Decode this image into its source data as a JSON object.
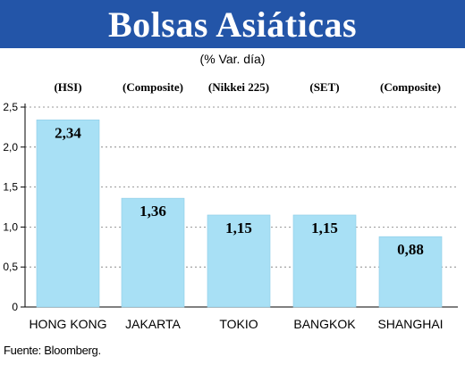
{
  "header": {
    "title": "Bolsas Asiáticas",
    "subtitle": "(% Var. día)"
  },
  "colors": {
    "banner": "#2355a8",
    "bar": "#a8e0f5",
    "bar_edge": "#8ccbe6",
    "axis": "#000000",
    "grid": "#7a7a7a"
  },
  "chart_data": {
    "type": "bar",
    "categories": [
      "HONG KONG",
      "JAKARTA",
      "TOKIO",
      "BANGKOK",
      "SHANGHAI"
    ],
    "index_labels": [
      "(HSI)",
      "(Composite)",
      "(Nikkei 225)",
      "(SET)",
      "(Composite)"
    ],
    "values": [
      2.34,
      1.36,
      1.15,
      1.15,
      0.88
    ],
    "value_labels": [
      "2,34",
      "1,36",
      "1,15",
      "1,15",
      "0,88"
    ],
    "yticks": [
      0,
      0.5,
      1.0,
      1.5,
      2.0,
      2.5
    ],
    "ytick_labels": [
      "0",
      "0,5",
      "1,0",
      "1,5",
      "2,0",
      "2,5"
    ],
    "ylim": [
      0,
      2.5
    ],
    "title": "Bolsas Asiáticas",
    "subtitle": "(% Var. día)",
    "grid": "horizontal dashed",
    "legend": "none"
  },
  "footer": {
    "source": "Fuente: Bloomberg."
  }
}
